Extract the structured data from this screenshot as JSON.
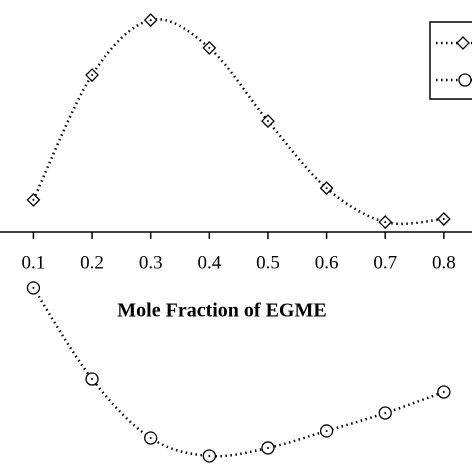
{
  "chart_data": {
    "type": "line",
    "x_label": "Mole Fraction of EGME",
    "x": [
      0.1,
      0.2,
      0.3,
      0.4,
      0.5,
      0.6,
      0.7,
      0.8
    ],
    "series": [
      {
        "color": "#000000",
        "marker": "diamond",
        "values": [
          0.136,
          0.665,
          0.898,
          0.78,
          0.47,
          0.186,
          0.042,
          0.055
        ]
      },
      {
        "color": "#000000",
        "marker": "circle",
        "values": [
          -0.237,
          -0.623,
          -0.873,
          -0.949,
          -0.915,
          -0.843,
          -0.767,
          -0.678
        ]
      }
    ],
    "xlim": [
      0.043,
      0.848
    ],
    "ylim": [
      -1.0,
      1.0
    ],
    "xticks": [
      0.1,
      0.2,
      0.3,
      0.4,
      0.5,
      0.6,
      0.7,
      0.8
    ]
  }
}
